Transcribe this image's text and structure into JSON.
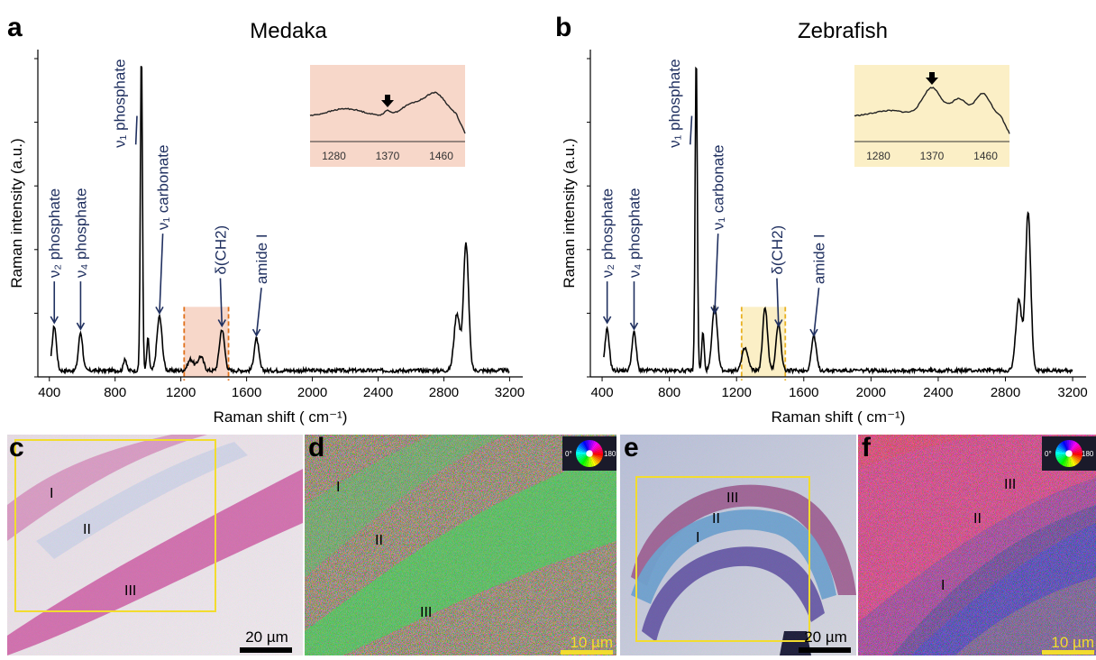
{
  "panels": {
    "a": {
      "letter": "a",
      "title": "Medaka"
    },
    "b": {
      "letter": "b",
      "title": "Zebrafish"
    },
    "c": {
      "letter": "c",
      "scale_bar": "20 µm",
      "regions": [
        "I",
        "II",
        "III"
      ]
    },
    "d": {
      "letter": "d",
      "scale_bar": "10 µm",
      "regions": [
        "I",
        "II",
        "III"
      ],
      "wheel_labels": [
        "0°",
        "180°"
      ]
    },
    "e": {
      "letter": "e",
      "scale_bar": "20 µm",
      "regions": [
        "III",
        "II",
        "I"
      ]
    },
    "f": {
      "letter": "f",
      "scale_bar": "10 µm",
      "regions": [
        "III",
        "II",
        "I"
      ],
      "wheel_labels": [
        "0°",
        "180"
      ]
    }
  },
  "chart_data": [
    {
      "type": "line",
      "title": "Medaka",
      "xlabel": "Raman shift ( cm⁻¹)",
      "ylabel": "Raman intensity (a.u.)",
      "xlim": [
        330,
        3280
      ],
      "ylim": [
        0,
        1
      ],
      "xticks": [
        "400",
        "800",
        "1200",
        "1600",
        "2000",
        "2400",
        "2800",
        "3200"
      ],
      "highlight_range": [
        1220,
        1490
      ],
      "highlight_color": "#f7d7c9",
      "peaks": [
        {
          "x": 430,
          "y": 0.14,
          "w": 18
        },
        {
          "x": 590,
          "y": 0.12,
          "w": 18
        },
        {
          "x": 860,
          "y": 0.04,
          "w": 12
        },
        {
          "x": 960,
          "y": 1.0,
          "w": 9
        },
        {
          "x": 1000,
          "y": 0.1,
          "w": 10
        },
        {
          "x": 1070,
          "y": 0.17,
          "w": 22
        },
        {
          "x": 1260,
          "y": 0.035,
          "w": 25
        },
        {
          "x": 1320,
          "y": 0.045,
          "w": 25
        },
        {
          "x": 1450,
          "y": 0.13,
          "w": 22
        },
        {
          "x": 1660,
          "y": 0.1,
          "w": 20
        },
        {
          "x": 2880,
          "y": 0.18,
          "w": 25
        },
        {
          "x": 2935,
          "y": 0.4,
          "w": 22
        }
      ],
      "annotations": [
        "ν₂ phosphate",
        "ν₄ phosphate",
        "ν₁ phosphate",
        "ν₁ carbonate",
        "δ(CH2)",
        "amide I"
      ],
      "inset": {
        "xticks": [
          "1280",
          "1370",
          "1460"
        ],
        "xlim": [
          1240,
          1500
        ],
        "color": "#f7d7c9",
        "peaks": [
          {
            "x": 1300,
            "y": 0.2,
            "w": 40
          },
          {
            "x": 1370,
            "y": 0.12,
            "w": 8
          },
          {
            "x": 1450,
            "y": 0.6,
            "w": 25
          },
          {
            "x": 1410,
            "y": 0.3,
            "w": 25
          }
        ]
      }
    },
    {
      "type": "line",
      "title": "Zebrafish",
      "xlabel": "Raman shift ( cm⁻¹)",
      "ylabel": "Raman intensity (a.u.)",
      "xlim": [
        330,
        3280
      ],
      "ylim": [
        0,
        1
      ],
      "xticks": [
        "400",
        "800",
        "1200",
        "1600",
        "2000",
        "2400",
        "2800",
        "3200"
      ],
      "highlight_range": [
        1230,
        1490
      ],
      "highlight_color": "#fbefc6",
      "peaks": [
        {
          "x": 430,
          "y": 0.13,
          "w": 18
        },
        {
          "x": 590,
          "y": 0.12,
          "w": 18
        },
        {
          "x": 960,
          "y": 1.0,
          "w": 9
        },
        {
          "x": 1000,
          "y": 0.12,
          "w": 10
        },
        {
          "x": 1070,
          "y": 0.2,
          "w": 22
        },
        {
          "x": 1250,
          "y": 0.07,
          "w": 25
        },
        {
          "x": 1370,
          "y": 0.2,
          "w": 20
        },
        {
          "x": 1450,
          "y": 0.15,
          "w": 20
        },
        {
          "x": 1660,
          "y": 0.11,
          "w": 20
        },
        {
          "x": 2880,
          "y": 0.22,
          "w": 25
        },
        {
          "x": 2935,
          "y": 0.5,
          "w": 22
        }
      ],
      "annotations": [
        "ν₂ phosphate",
        "ν₄ phosphate",
        "ν₁ phosphate",
        "ν₁ carbonate",
        "δ(CH2)",
        "amide I"
      ],
      "inset": {
        "xticks": [
          "1280",
          "1370",
          "1460"
        ],
        "xlim": [
          1240,
          1500
        ],
        "color": "#fbefc6",
        "peaks": [
          {
            "x": 1370,
            "y": 0.75,
            "w": 22
          },
          {
            "x": 1415,
            "y": 0.45,
            "w": 18
          },
          {
            "x": 1455,
            "y": 0.6,
            "w": 18
          },
          {
            "x": 1300,
            "y": 0.15,
            "w": 40
          }
        ]
      }
    }
  ]
}
